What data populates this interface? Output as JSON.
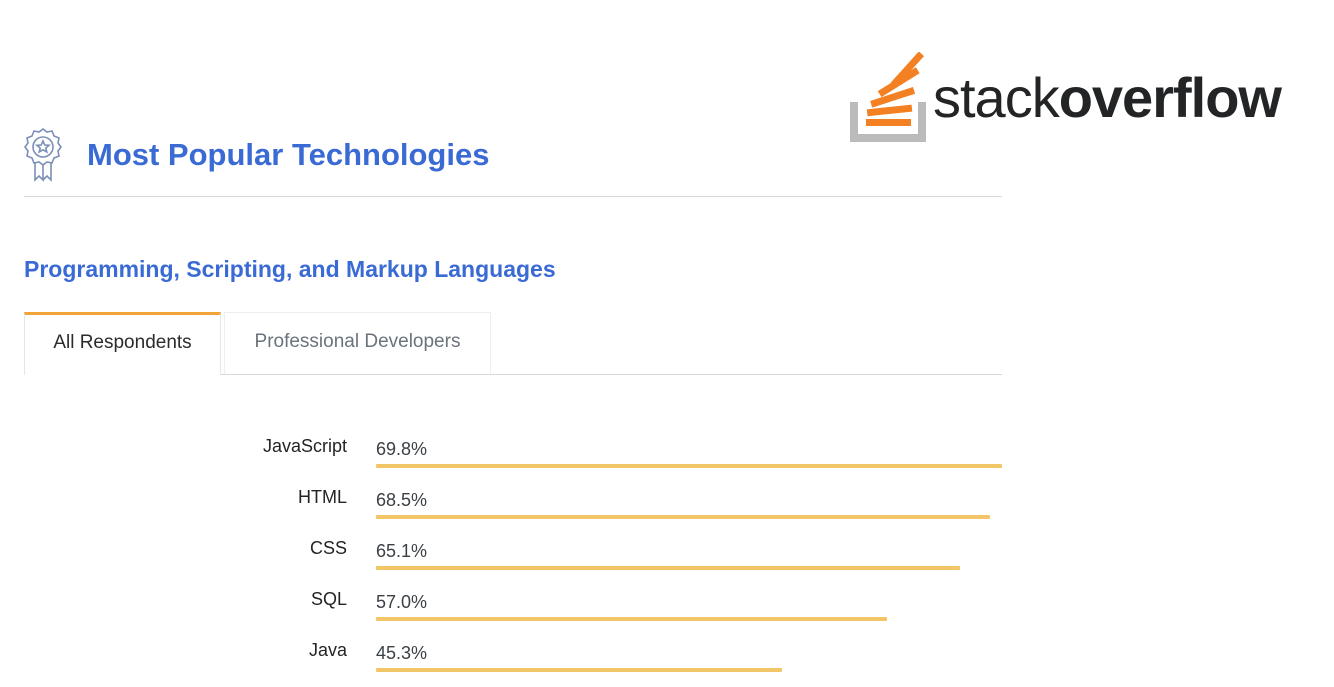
{
  "logo": {
    "word_light": "stack",
    "word_bold": "overflow",
    "icon": "stackoverflow-logo-icon",
    "accent_color": "#f48024",
    "tray_color": "#bcbbbb"
  },
  "header": {
    "icon": "award-badge-icon",
    "title": "Most Popular Technologies"
  },
  "section": {
    "title": "Programming, Scripting, and Markup Languages"
  },
  "tabs": [
    {
      "label": "All Respondents",
      "active": true
    },
    {
      "label": "Professional Developers",
      "active": false
    }
  ],
  "colors": {
    "title_blue": "#3a6ad4",
    "bar": "#f2c666",
    "tab_accent": "#f2a43a"
  },
  "chart_data": {
    "type": "bar",
    "orientation": "horizontal",
    "categories": [
      "JavaScript",
      "HTML",
      "CSS",
      "SQL",
      "Java"
    ],
    "values": [
      69.8,
      68.5,
      65.1,
      57.0,
      45.3
    ],
    "value_labels": [
      "69.8%",
      "68.5%",
      "65.1%",
      "57.0%",
      "45.3%"
    ],
    "unit": "%",
    "xlim": [
      0,
      69.8
    ],
    "grid": false,
    "legend": "none"
  }
}
